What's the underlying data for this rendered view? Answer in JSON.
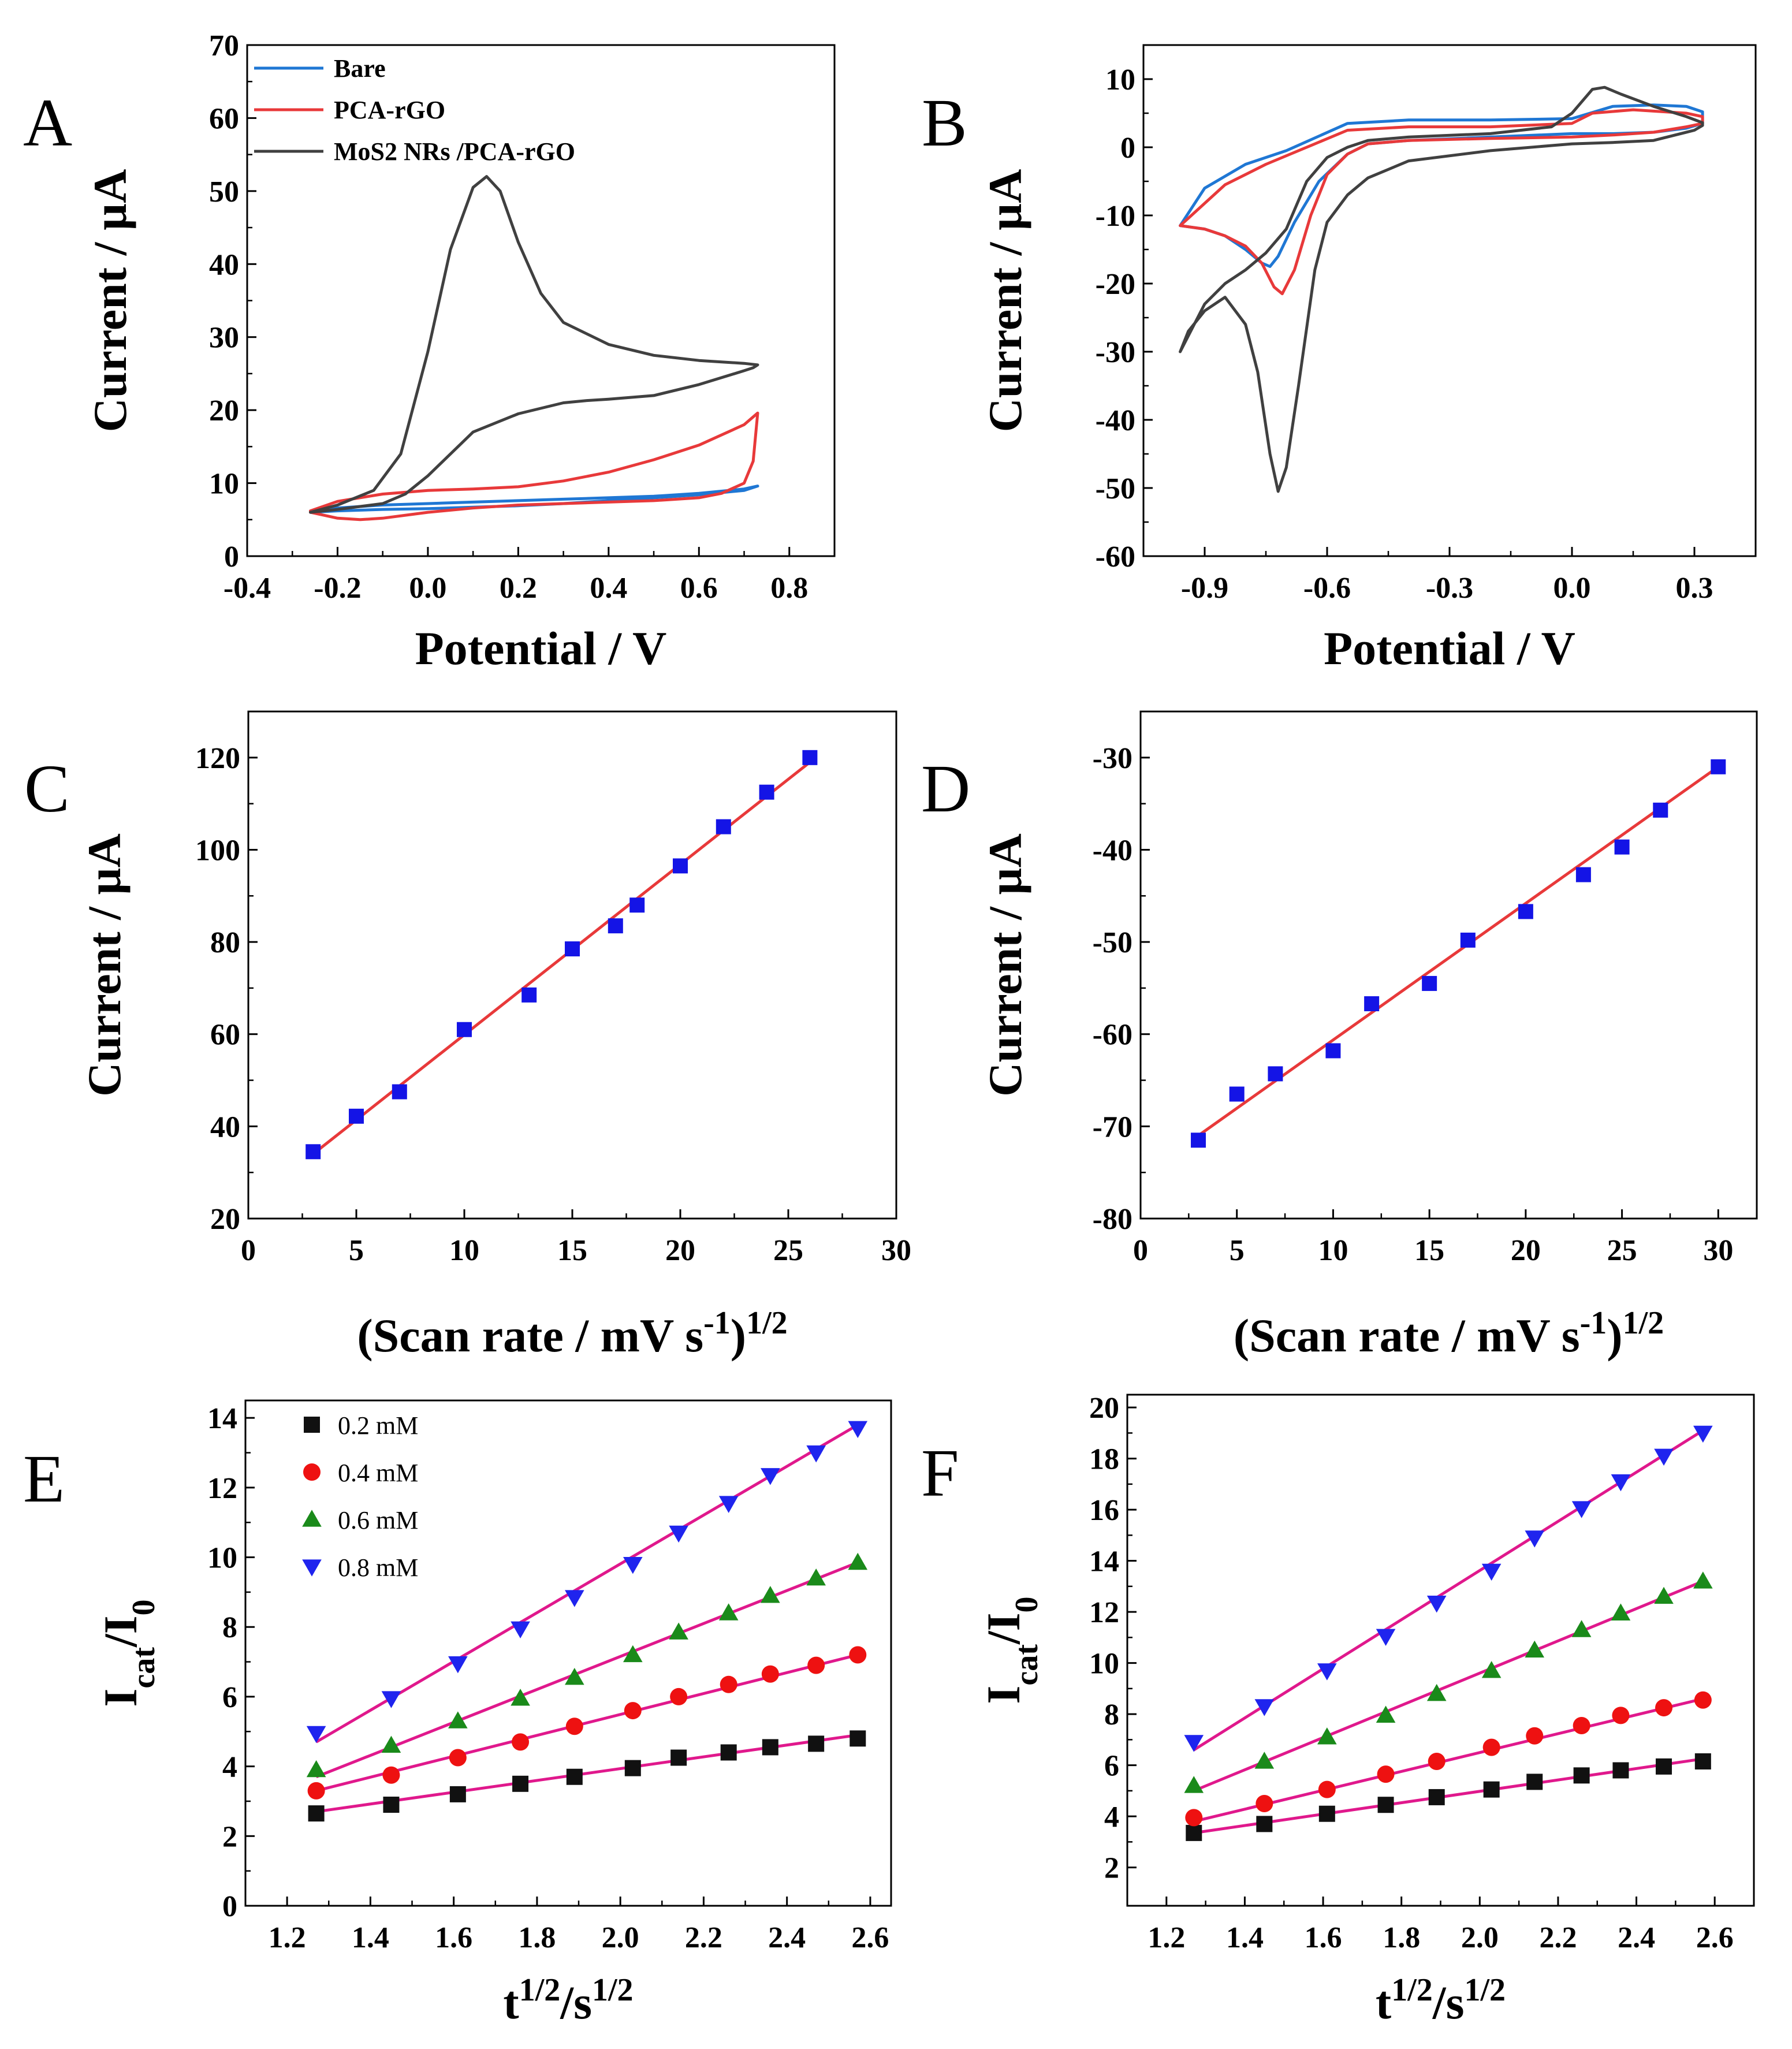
{
  "chart_data": [
    {
      "panel": "A",
      "type": "line",
      "title": "",
      "xlabel": "Potential / V",
      "ylabel": "Current / µA",
      "xlim": [
        -0.4,
        0.9
      ],
      "ylim": [
        0,
        70
      ],
      "xticks": [
        -0.4,
        -0.2,
        0.0,
        0.2,
        0.4,
        0.6,
        0.8
      ],
      "xtick_labels": [
        "-0.4",
        "-0.2",
        "0.0",
        "0.2",
        "0.4",
        "0.6",
        "0.8"
      ],
      "yticks": [
        0,
        10,
        20,
        30,
        40,
        50,
        60,
        70
      ],
      "ytick_labels": [
        "0",
        "10",
        "20",
        "30",
        "40",
        "50",
        "60",
        "70"
      ],
      "legend_position": "top-left",
      "series": [
        {
          "name": "Bare",
          "color": "#1f77d4",
          "x": [
            -0.26,
            -0.2,
            -0.1,
            0.0,
            0.1,
            0.2,
            0.3,
            0.4,
            0.5,
            0.6,
            0.7,
            0.73,
            0.7,
            0.6,
            0.5,
            0.4,
            0.3,
            0.2,
            0.1,
            0.0,
            -0.1,
            -0.2,
            -0.26
          ],
          "y": [
            6.0,
            6.6,
            7.0,
            7.2,
            7.4,
            7.6,
            7.8,
            8.0,
            8.2,
            8.6,
            9.2,
            9.6,
            9.0,
            8.4,
            8.0,
            7.6,
            7.2,
            6.9,
            6.7,
            6.5,
            6.4,
            6.2,
            6.0
          ]
        },
        {
          "name": "PCA-rGO",
          "color": "#e8393a",
          "x": [
            -0.26,
            -0.2,
            -0.1,
            0.0,
            0.1,
            0.2,
            0.3,
            0.4,
            0.5,
            0.6,
            0.7,
            0.73,
            0.72,
            0.7,
            0.65,
            0.6,
            0.5,
            0.4,
            0.3,
            0.2,
            0.1,
            0.0,
            -0.1,
            -0.15,
            -0.2,
            -0.26
          ],
          "y": [
            6.2,
            7.5,
            8.5,
            9.0,
            9.2,
            9.5,
            10.3,
            11.5,
            13.2,
            15.2,
            18.0,
            19.6,
            13.0,
            10.0,
            8.6,
            8.0,
            7.6,
            7.4,
            7.2,
            7.0,
            6.6,
            6.0,
            5.2,
            5.0,
            5.2,
            6.0
          ]
        },
        {
          "name": "MoS2 NRs /PCA-rGO",
          "color": "#404040",
          "x": [
            -0.26,
            -0.2,
            -0.12,
            -0.06,
            0.0,
            0.05,
            0.1,
            0.13,
            0.16,
            0.2,
            0.25,
            0.3,
            0.4,
            0.5,
            0.6,
            0.7,
            0.73,
            0.72,
            0.7,
            0.6,
            0.5,
            0.4,
            0.35,
            0.3,
            0.2,
            0.1,
            0.0,
            -0.05,
            -0.1,
            -0.15,
            -0.2,
            -0.26
          ],
          "y": [
            6.0,
            7.0,
            9.0,
            14.0,
            28.0,
            42.0,
            50.5,
            52.0,
            50.0,
            43.0,
            36.0,
            32.0,
            29.0,
            27.5,
            26.8,
            26.4,
            26.2,
            25.8,
            25.4,
            23.5,
            22.0,
            21.5,
            21.3,
            21.0,
            19.5,
            17.0,
            11.0,
            8.5,
            7.2,
            6.8,
            6.4,
            6.0
          ]
        }
      ]
    },
    {
      "panel": "B",
      "type": "line",
      "title": "",
      "xlabel": "Potential / V",
      "ylabel": "Current / µA",
      "xlim": [
        -1.05,
        0.45
      ],
      "ylim": [
        -60,
        15
      ],
      "xticks": [
        -0.9,
        -0.6,
        -0.3,
        0.0,
        0.3
      ],
      "xtick_labels": [
        "-0.9",
        "-0.6",
        "-0.3",
        "0.0",
        "0.3"
      ],
      "yticks": [
        -60,
        -50,
        -40,
        -30,
        -20,
        -10,
        0,
        10
      ],
      "ytick_labels": [
        "-60",
        "-50",
        "-40",
        "-30",
        "-20",
        "-10",
        "0",
        "10"
      ],
      "series": [
        {
          "name": "Bare",
          "color": "#1f77d4",
          "x": [
            -0.96,
            -0.9,
            -0.85,
            -0.8,
            -0.76,
            -0.74,
            -0.72,
            -0.68,
            -0.62,
            -0.55,
            -0.5,
            -0.4,
            -0.2,
            0.0,
            0.1,
            0.2,
            0.28,
            0.32,
            0.32,
            0.28,
            0.2,
            0.1,
            0.0,
            -0.2,
            -0.4,
            -0.55,
            -0.7,
            -0.8,
            -0.9,
            -0.96
          ],
          "y": [
            -11.5,
            -12.0,
            -13.0,
            -15.0,
            -17.0,
            -17.5,
            -16.0,
            -11.0,
            -5.0,
            -1.0,
            0.5,
            1.0,
            1.5,
            2.0,
            2.0,
            2.2,
            2.8,
            3.5,
            5.2,
            6.0,
            6.2,
            6.0,
            4.2,
            4.0,
            4.0,
            3.5,
            -0.5,
            -2.5,
            -6.0,
            -11.5
          ]
        },
        {
          "name": "PCA-rGO",
          "color": "#e8393a",
          "x": [
            -0.96,
            -0.9,
            -0.85,
            -0.8,
            -0.76,
            -0.73,
            -0.71,
            -0.68,
            -0.64,
            -0.6,
            -0.55,
            -0.5,
            -0.4,
            -0.2,
            0.0,
            0.1,
            0.2,
            0.28,
            0.32,
            0.32,
            0.28,
            0.15,
            0.05,
            0.0,
            -0.2,
            -0.4,
            -0.55,
            -0.65,
            -0.75,
            -0.85,
            -0.96
          ],
          "y": [
            -11.5,
            -12.0,
            -13.0,
            -14.5,
            -17.0,
            -20.5,
            -21.5,
            -18.0,
            -10.0,
            -4.0,
            -1.0,
            0.5,
            1.0,
            1.3,
            1.5,
            1.8,
            2.2,
            3.0,
            3.5,
            4.5,
            5.0,
            5.5,
            5.0,
            3.5,
            3.0,
            3.0,
            2.5,
            0.0,
            -2.5,
            -5.5,
            -11.5
          ]
        },
        {
          "name": "MoS2 NRs /PCA-rGO",
          "color": "#404040",
          "x": [
            -0.96,
            -0.94,
            -0.9,
            -0.85,
            -0.8,
            -0.77,
            -0.74,
            -0.72,
            -0.7,
            -0.67,
            -0.63,
            -0.6,
            -0.55,
            -0.5,
            -0.4,
            -0.2,
            0.0,
            0.1,
            0.2,
            0.3,
            0.32,
            0.32,
            0.28,
            0.2,
            0.12,
            0.08,
            0.05,
            0.0,
            -0.05,
            -0.2,
            -0.4,
            -0.5,
            -0.55,
            -0.6,
            -0.65,
            -0.7,
            -0.75,
            -0.8,
            -0.85,
            -0.9,
            -0.96
          ],
          "y": [
            -30.0,
            -27.0,
            -24.0,
            -22.0,
            -26.0,
            -33.0,
            -45.0,
            -50.5,
            -47.0,
            -35.0,
            -18.0,
            -11.0,
            -7.0,
            -4.5,
            -2.0,
            -0.5,
            0.5,
            0.7,
            1.0,
            2.5,
            3.2,
            3.6,
            4.5,
            6.0,
            7.8,
            8.8,
            8.5,
            5.0,
            3.0,
            2.0,
            1.5,
            1.0,
            0.0,
            -1.5,
            -5.0,
            -12.0,
            -15.5,
            -18.0,
            -20.0,
            -23.0,
            -30.0
          ]
        }
      ]
    },
    {
      "panel": "C",
      "type": "scatter",
      "title": "",
      "xlabel": "(Scan rate / mV s-1)1/2",
      "xlabel_parts": [
        "(Scan rate / mV s",
        "-1",
        ")",
        "1/2"
      ],
      "ylabel": "Current / µA",
      "xlim": [
        0,
        30
      ],
      "ylim": [
        20,
        130
      ],
      "xticks": [
        0,
        5,
        10,
        15,
        20,
        25,
        30
      ],
      "xtick_labels": [
        "0",
        "5",
        "10",
        "15",
        "20",
        "25",
        "30"
      ],
      "yticks": [
        20,
        40,
        60,
        80,
        100,
        120
      ],
      "ytick_labels": [
        "20",
        "40",
        "60",
        "80",
        "100",
        "120"
      ],
      "series": [
        {
          "name": "data",
          "color": "#1414e6",
          "marker": "square",
          "x": [
            3,
            5,
            7,
            10,
            13,
            15,
            17,
            18,
            20,
            22,
            24,
            26
          ],
          "y": [
            34.5,
            42.2,
            47.5,
            61.0,
            68.5,
            78.5,
            83.5,
            88.0,
            96.5,
            105.0,
            112.5,
            120.0
          ]
        },
        {
          "name": "fit",
          "color": "#e8393a",
          "line": true,
          "x": [
            3,
            26
          ],
          "y": [
            34.0,
            119.0
          ]
        }
      ]
    },
    {
      "panel": "D",
      "type": "scatter",
      "title": "",
      "xlabel": "(Scan rate / mV s-1)1/2",
      "xlabel_parts": [
        "(Scan rate / mV s",
        "-1",
        ")",
        "1/2"
      ],
      "ylabel": "Current / µA",
      "xlim": [
        0,
        32
      ],
      "ylim": [
        -80,
        -25
      ],
      "xticks": [
        0,
        5,
        10,
        15,
        20,
        25,
        30
      ],
      "xtick_labels": [
        "0",
        "5",
        "10",
        "15",
        "20",
        "25",
        "30"
      ],
      "yticks": [
        -80,
        -70,
        -60,
        -50,
        -40,
        -30
      ],
      "ytick_labels": [
        "-80",
        "-70",
        "-60",
        "-50",
        "-40",
        "-30"
      ],
      "series": [
        {
          "name": "data",
          "color": "#1414e6",
          "marker": "square",
          "x": [
            3,
            5,
            7,
            10,
            12,
            15,
            17,
            20,
            23,
            25,
            27,
            30
          ],
          "y": [
            -71.5,
            -66.5,
            -64.3,
            -61.8,
            -56.7,
            -54.5,
            -49.8,
            -46.7,
            -42.7,
            -39.7,
            -35.7,
            -31.0
          ]
        },
        {
          "name": "fit",
          "color": "#e8393a",
          "line": true,
          "x": [
            3,
            30
          ],
          "y": [
            -71.0,
            -31.0
          ]
        }
      ]
    },
    {
      "panel": "E",
      "type": "scatter",
      "title": "",
      "xlabel": "t1/2/s1/2",
      "xlabel_parts": [
        "t",
        "1/2",
        "/s",
        "1/2"
      ],
      "ylabel": "Icat/I0",
      "ylabel_parts": [
        "I",
        "cat",
        "/I",
        "0"
      ],
      "xlim": [
        1.1,
        2.65
      ],
      "ylim": [
        0,
        14.5
      ],
      "xticks": [
        1.2,
        1.4,
        1.6,
        1.8,
        2.0,
        2.2,
        2.4,
        2.6
      ],
      "xtick_labels": [
        "1.2",
        "1.4",
        "1.6",
        "1.8",
        "2.0",
        "2.2",
        "2.4",
        "2.6"
      ],
      "yticks": [
        0,
        2,
        4,
        6,
        8,
        10,
        12,
        14
      ],
      "ytick_labels": [
        "0",
        "2",
        "4",
        "6",
        "8",
        "10",
        "12",
        "14"
      ],
      "legend_position": "top-left",
      "fit_color": "#e0188c",
      "x": [
        1.27,
        1.45,
        1.61,
        1.76,
        1.89,
        2.03,
        2.14,
        2.26,
        2.36,
        2.47,
        2.57
      ],
      "series": [
        {
          "name": "0.2 mM",
          "color": "#111111",
          "marker": "square",
          "y": [
            2.65,
            2.9,
            3.2,
            3.5,
            3.7,
            3.95,
            4.25,
            4.4,
            4.55,
            4.65,
            4.8
          ],
          "fit": [
            2.7,
            4.9
          ]
        },
        {
          "name": "0.4 mM",
          "color": "#ee1111",
          "marker": "circle",
          "y": [
            3.3,
            3.75,
            4.25,
            4.7,
            5.15,
            5.6,
            6.0,
            6.35,
            6.65,
            6.9,
            7.2
          ],
          "fit": [
            3.3,
            7.2
          ]
        },
        {
          "name": "0.6 mM",
          "color": "#1a8a1a",
          "marker": "triangle-up",
          "y": [
            3.9,
            4.6,
            5.3,
            5.95,
            6.55,
            7.2,
            7.85,
            8.4,
            8.9,
            9.4,
            9.85
          ],
          "fit": [
            3.7,
            9.85
          ]
        },
        {
          "name": "0.8 mM",
          "color": "#1f24ee",
          "marker": "triangle-down",
          "y": [
            4.95,
            5.95,
            6.95,
            7.95,
            8.85,
            9.8,
            10.7,
            11.55,
            12.35,
            13.0,
            13.7
          ],
          "fit": [
            4.7,
            13.8
          ]
        }
      ]
    },
    {
      "panel": "F",
      "type": "scatter",
      "title": "",
      "xlabel": "t1/2/s1/2",
      "xlabel_parts": [
        "t",
        "1/2",
        "/s",
        "1/2"
      ],
      "ylabel": "Icat/I0",
      "ylabel_parts": [
        "I",
        "cat",
        "/I",
        "0"
      ],
      "xlim": [
        1.1,
        2.7
      ],
      "ylim": [
        0.5,
        20.5
      ],
      "xticks": [
        1.2,
        1.4,
        1.6,
        1.8,
        2.0,
        2.2,
        2.4,
        2.6
      ],
      "xtick_labels": [
        "1.2",
        "1.4",
        "1.6",
        "1.8",
        "2.0",
        "2.2",
        "2.4",
        "2.6"
      ],
      "yticks": [
        2,
        4,
        6,
        8,
        10,
        12,
        14,
        16,
        18,
        20
      ],
      "ytick_labels": [
        "2",
        "4",
        "6",
        "8",
        "10",
        "12",
        "14",
        "16",
        "18",
        "20"
      ],
      "fit_color": "#e0188c",
      "x": [
        1.27,
        1.45,
        1.61,
        1.76,
        1.89,
        2.03,
        2.14,
        2.26,
        2.36,
        2.47,
        2.57
      ],
      "series": [
        {
          "name": "0.2 mM",
          "color": "#111111",
          "marker": "square",
          "y": [
            3.35,
            3.7,
            4.1,
            4.45,
            4.75,
            5.05,
            5.35,
            5.6,
            5.8,
            5.95,
            6.15
          ],
          "fit": [
            3.35,
            6.25
          ]
        },
        {
          "name": "0.4 mM",
          "color": "#ee1111",
          "marker": "circle",
          "y": [
            3.95,
            4.5,
            5.05,
            5.65,
            6.15,
            6.7,
            7.15,
            7.55,
            7.95,
            8.25,
            8.55
          ],
          "fit": [
            3.8,
            8.6
          ]
        },
        {
          "name": "0.6 mM",
          "color": "#1a8a1a",
          "marker": "triangle-up",
          "y": [
            5.2,
            6.15,
            7.1,
            7.95,
            8.8,
            9.7,
            10.5,
            11.3,
            11.95,
            12.6,
            13.2
          ],
          "fit": [
            5.0,
            13.2
          ]
        },
        {
          "name": "0.8 mM",
          "color": "#1f24ee",
          "marker": "triangle-down",
          "y": [
            6.9,
            8.3,
            9.7,
            11.05,
            12.35,
            13.6,
            14.9,
            16.05,
            17.1,
            18.1,
            19.0
          ],
          "fit": [
            6.6,
            19.1
          ]
        }
      ]
    }
  ]
}
